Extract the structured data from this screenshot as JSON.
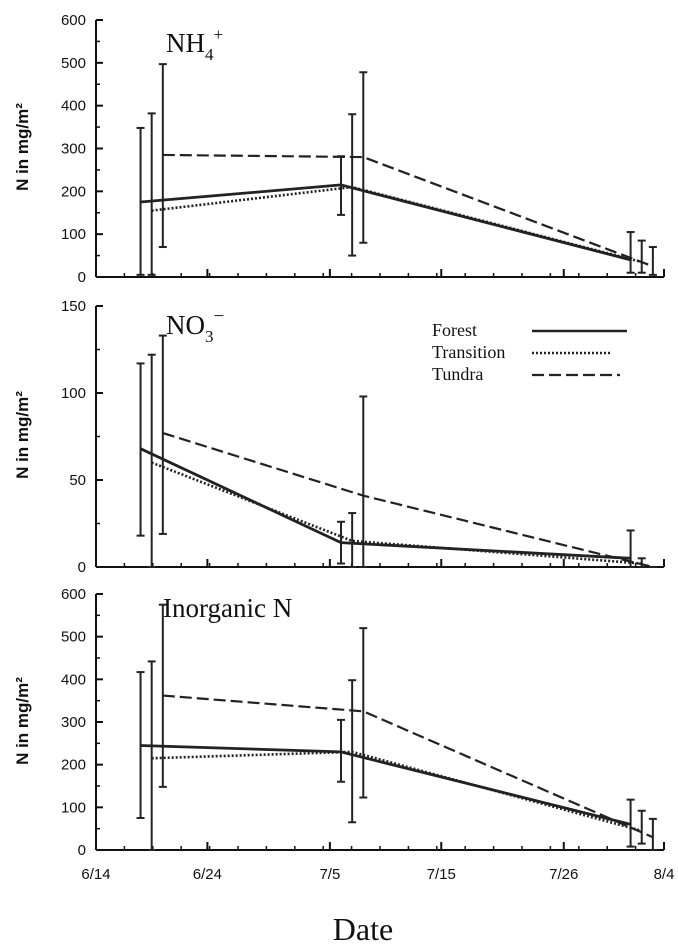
{
  "figure": {
    "xlabel": "Date",
    "x_tick_labels": [
      "6/14",
      "6/24",
      "7/5",
      "7/15",
      "7/26",
      "8/4"
    ],
    "legend": {
      "items": [
        "Forest",
        "Transition",
        "Tundra"
      ],
      "placement": "top-right of middle panel"
    }
  },
  "chart_data": [
    {
      "type": "line",
      "title": "NH4+",
      "title_main": "NH",
      "title_sub": "4",
      "title_sup": "+",
      "ylabel": "N in mg/m²",
      "ylim": [
        0,
        600
      ],
      "y_ticks": [
        "0",
        "100",
        "200",
        "300",
        "400",
        "500",
        "600"
      ],
      "x_axis": "date",
      "x_range": [
        "6/14",
        "8/4"
      ],
      "error_bars": true,
      "series": [
        {
          "name": "Forest",
          "style": "solid",
          "x": [
            "6/18",
            "7/6",
            "8/1"
          ],
          "y": [
            175,
            215,
            40
          ],
          "err_low": [
            5,
            145,
            10
          ],
          "err_high": [
            348,
            282,
            105
          ]
        },
        {
          "name": "Transition",
          "style": "dotted",
          "x": [
            "6/19",
            "7/7",
            "8/2"
          ],
          "y": [
            155,
            210,
            35
          ],
          "err_low": [
            5,
            50,
            10
          ],
          "err_high": [
            382,
            380,
            85
          ]
        },
        {
          "name": "Tundra",
          "style": "dashed",
          "x": [
            "6/20",
            "7/8",
            "8/3"
          ],
          "y": [
            285,
            280,
            25
          ],
          "err_low": [
            70,
            80,
            5
          ],
          "err_high": [
            497,
            478,
            70
          ]
        }
      ]
    },
    {
      "type": "line",
      "title": "NO3−",
      "title_main": "NO",
      "title_sub": "3",
      "title_sup": "−",
      "ylabel": "N in mg/m²",
      "ylim": [
        0,
        150
      ],
      "y_ticks": [
        "0",
        "50",
        "100",
        "150"
      ],
      "x_axis": "date",
      "x_range": [
        "6/14",
        "8/4"
      ],
      "error_bars": true,
      "series": [
        {
          "name": "Forest",
          "style": "solid",
          "x": [
            "6/18",
            "7/6",
            "8/1"
          ],
          "y": [
            68,
            14,
            5
          ],
          "err_low": [
            18,
            2,
            0
          ],
          "err_high": [
            117,
            26,
            21
          ]
        },
        {
          "name": "Transition",
          "style": "dotted",
          "x": [
            "6/19",
            "7/7",
            "8/2"
          ],
          "y": [
            60,
            15,
            2
          ],
          "err_low": [
            0,
            0,
            0
          ],
          "err_high": [
            122,
            31,
            5
          ]
        },
        {
          "name": "Tundra",
          "style": "dashed",
          "x": [
            "6/20",
            "7/8",
            "8/3"
          ],
          "y": [
            77,
            41,
            0
          ],
          "err_low": [
            19,
            0,
            0
          ],
          "err_high": [
            133,
            98,
            0
          ]
        }
      ]
    },
    {
      "type": "line",
      "title": "Inorganic N",
      "ylabel": "N in mg/m²",
      "ylim": [
        0,
        600
      ],
      "y_ticks": [
        "0",
        "100",
        "200",
        "300",
        "400",
        "500",
        "600"
      ],
      "x_axis": "date",
      "x_range": [
        "6/14",
        "8/4"
      ],
      "error_bars": true,
      "series": [
        {
          "name": "Forest",
          "style": "solid",
          "x": [
            "6/18",
            "7/6",
            "8/1"
          ],
          "y": [
            245,
            230,
            60
          ],
          "err_low": [
            75,
            160,
            8
          ],
          "err_high": [
            417,
            305,
            118
          ]
        },
        {
          "name": "Transition",
          "style": "dotted",
          "x": [
            "6/19",
            "7/7",
            "8/2"
          ],
          "y": [
            215,
            230,
            45
          ],
          "err_low": [
            0,
            65,
            15
          ],
          "err_high": [
            442,
            398,
            92
          ]
        },
        {
          "name": "Tundra",
          "style": "dashed",
          "x": [
            "6/20",
            "7/8",
            "8/3"
          ],
          "y": [
            362,
            325,
            30
          ],
          "err_low": [
            148,
            123,
            0
          ],
          "err_high": [
            575,
            520,
            73
          ]
        }
      ]
    }
  ]
}
